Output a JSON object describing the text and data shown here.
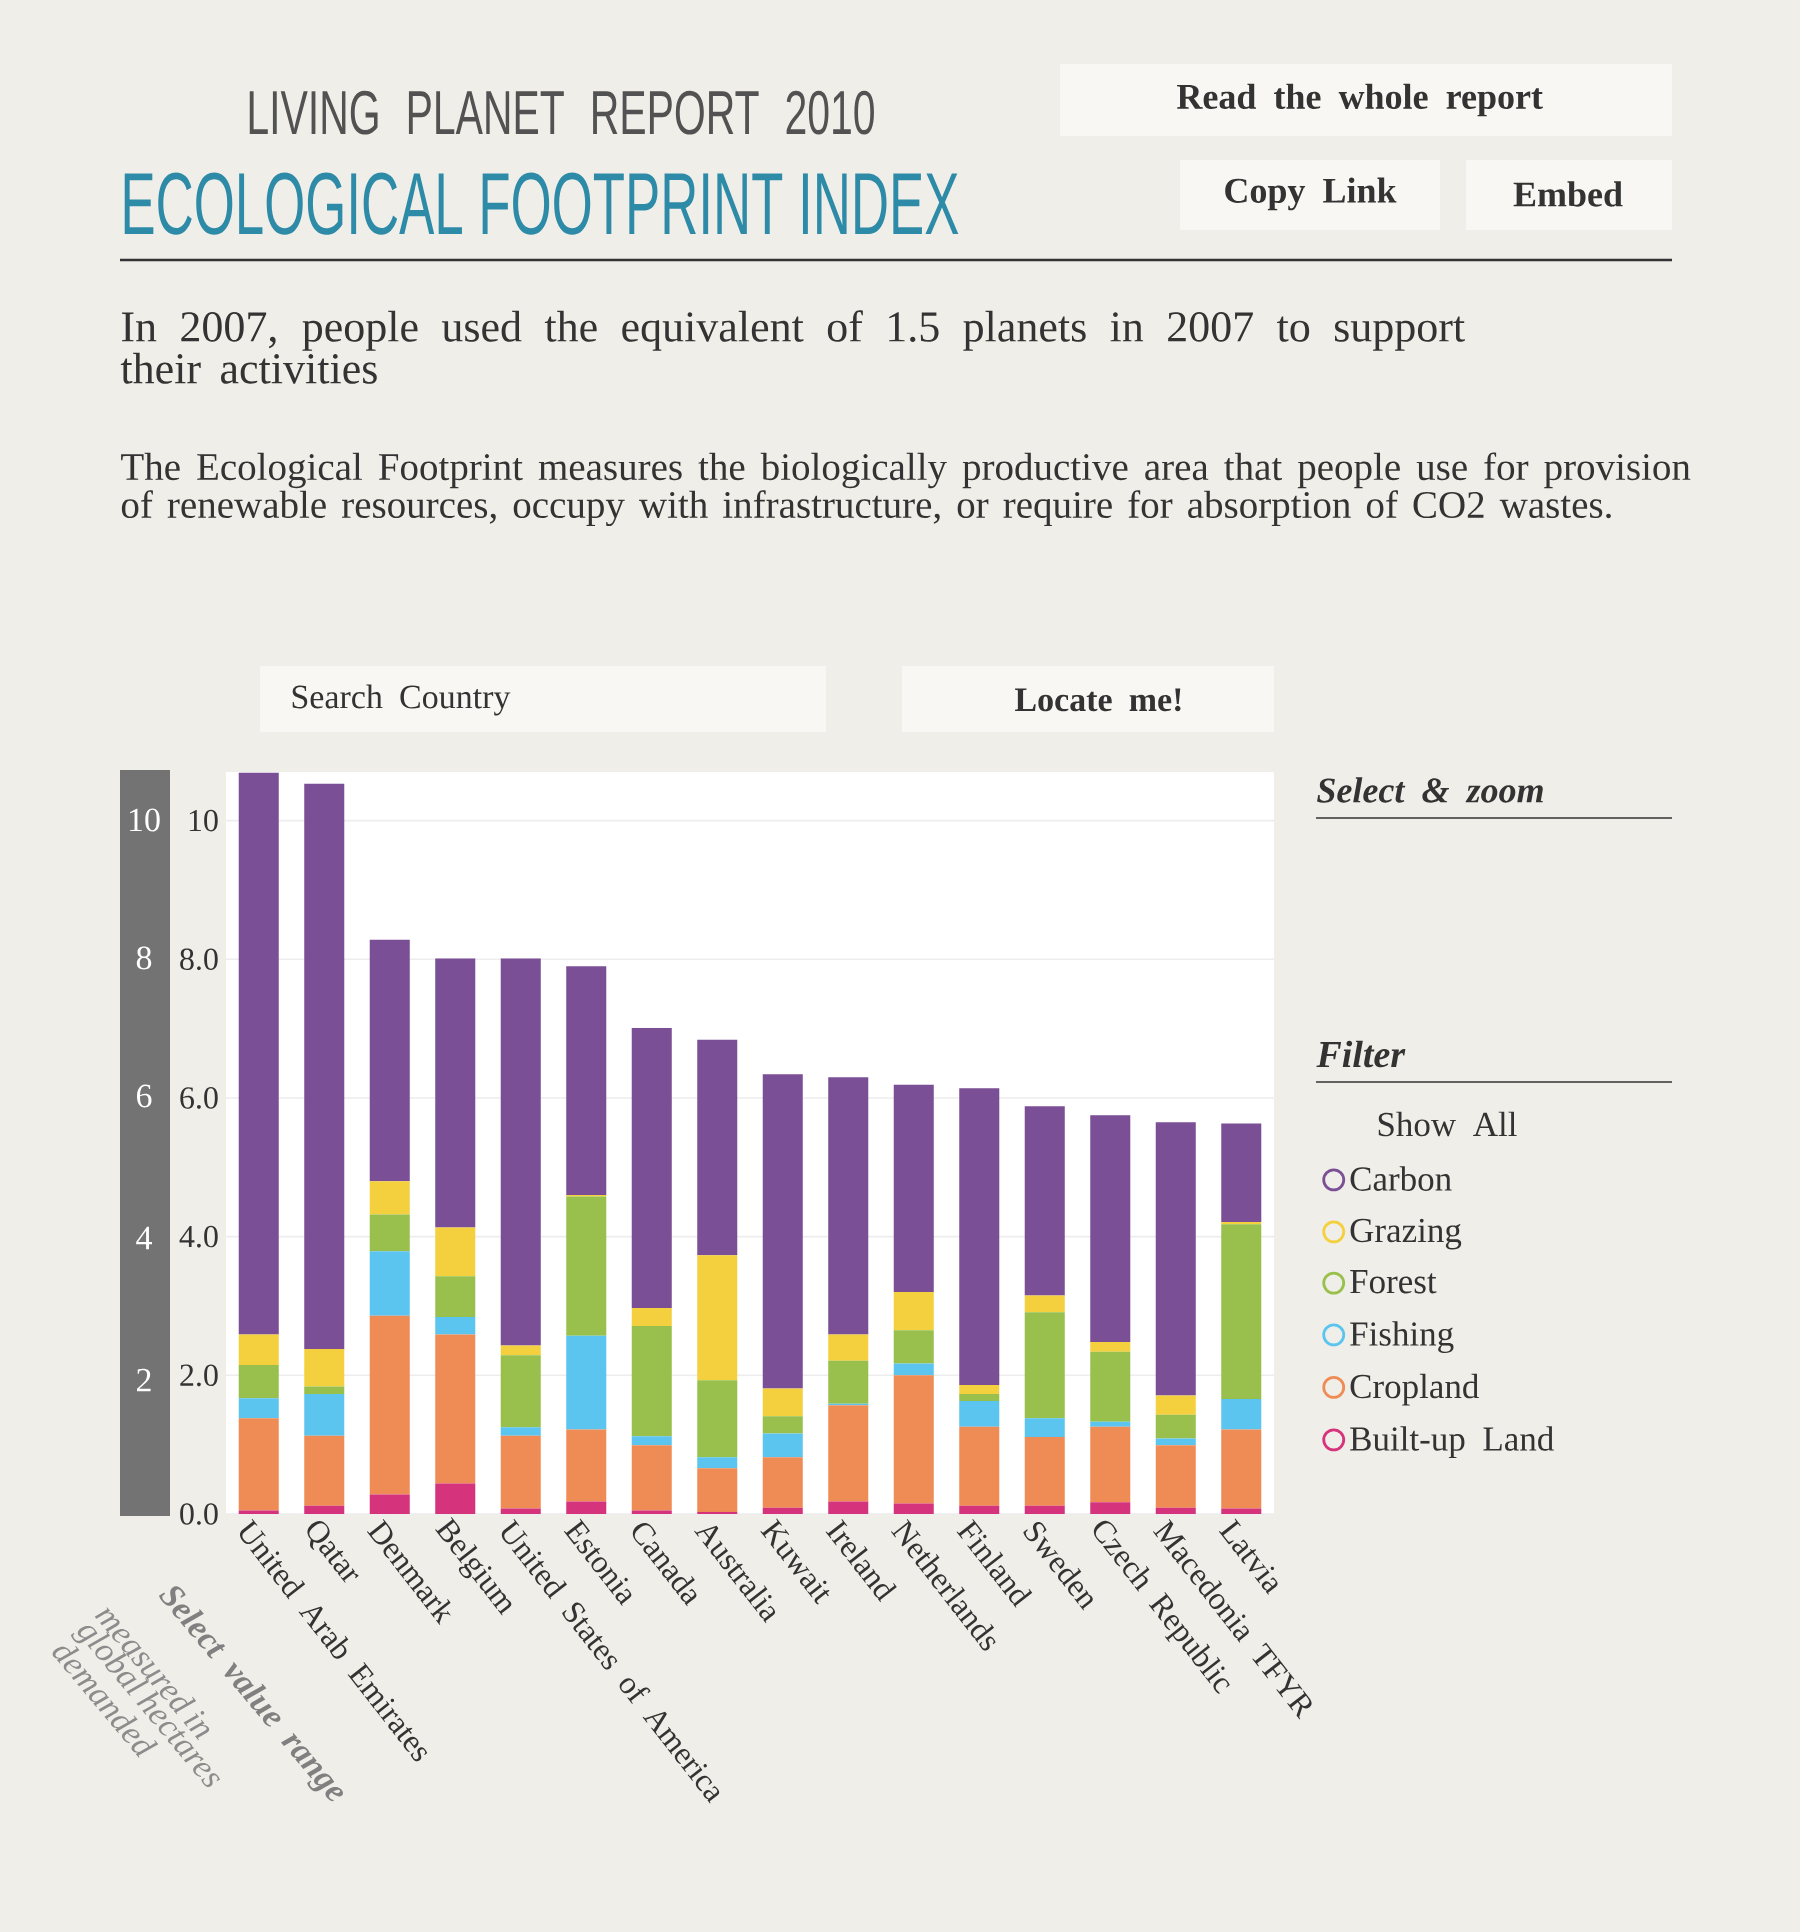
{
  "chart_data": {
    "type": "bar",
    "stacked": true,
    "title": "LIVING PLANET REPORT 2010",
    "subtitle": "ECOLOGICAL FOOTPRINT INDEX",
    "legend_title": "Filter",
    "annotations": [
      "In 2007, people used the equivalent of 1.5 planets in 2007 to support their activities",
      "The Ecological Footprint measures the biologically productive area that people use for provision of renewable resources, occupy with infrastructure, or require for absorption of CO2 wastes.",
      "Read the whole report",
      "Copy Link",
      "Embed",
      "Search Country",
      "Locate me!",
      "Select & zoom",
      "Show All",
      "Select value range",
      "10",
      "8",
      "6",
      "4",
      "2",
      "measured in global hectares demanded"
    ],
    "categories": [
      "United Arab Emirates",
      "Qatar",
      "Denmark",
      "Belgium",
      "United States of America",
      "Estonia",
      "Canada",
      "Australia",
      "Kuwait",
      "Ireland",
      "Netherlands",
      "Finland",
      "Sweden",
      "Czech Republic",
      "Macedonia TFYR",
      "Latvia"
    ],
    "series": [
      {
        "name": "Built-up Land",
        "color": "#d6337d",
        "values": [
          0.05,
          0.12,
          0.28,
          0.44,
          0.08,
          0.18,
          0.05,
          0.03,
          0.09,
          0.18,
          0.15,
          0.12,
          0.12,
          0.17,
          0.09,
          0.08
        ]
      },
      {
        "name": "Cropland",
        "color": "#ef8c56",
        "values": [
          1.33,
          1.01,
          2.58,
          2.15,
          1.05,
          1.04,
          0.94,
          0.63,
          0.73,
          1.39,
          1.85,
          1.14,
          0.99,
          1.09,
          0.9,
          1.14
        ]
      },
      {
        "name": "Fishing",
        "color": "#5cc5ef",
        "values": [
          0.29,
          0.6,
          0.93,
          0.25,
          0.12,
          1.35,
          0.13,
          0.16,
          0.34,
          0.02,
          0.17,
          0.37,
          0.27,
          0.07,
          0.1,
          0.44
        ]
      },
      {
        "name": "Forest",
        "color": "#99c04c",
        "values": [
          0.48,
          0.11,
          0.53,
          0.59,
          1.04,
          2.01,
          1.59,
          1.11,
          0.25,
          0.62,
          0.48,
          0.1,
          1.53,
          1.01,
          0.34,
          2.52
        ]
      },
      {
        "name": "Grazing",
        "color": "#f4d03f",
        "values": [
          0.44,
          0.54,
          0.48,
          0.7,
          0.14,
          0.02,
          0.26,
          1.8,
          0.4,
          0.38,
          0.55,
          0.13,
          0.24,
          0.14,
          0.28,
          0.03
        ]
      },
      {
        "name": "Carbon",
        "color": "#7b4f96",
        "values": [
          8.1,
          8.15,
          3.48,
          3.88,
          5.58,
          3.3,
          4.04,
          3.11,
          4.53,
          3.71,
          2.99,
          4.28,
          2.73,
          3.27,
          3.94,
          1.42
        ]
      }
    ],
    "ylim": [
      0,
      10.7
    ],
    "yticks": [
      {
        "value": 0,
        "label": "0.0"
      },
      {
        "value": 2,
        "label": "2.0"
      },
      {
        "value": 4,
        "label": "4.0"
      },
      {
        "value": 6,
        "label": "6.0"
      },
      {
        "value": 8,
        "label": "8.0"
      },
      10
    ],
    "grid": "y",
    "legend": "right"
  }
}
